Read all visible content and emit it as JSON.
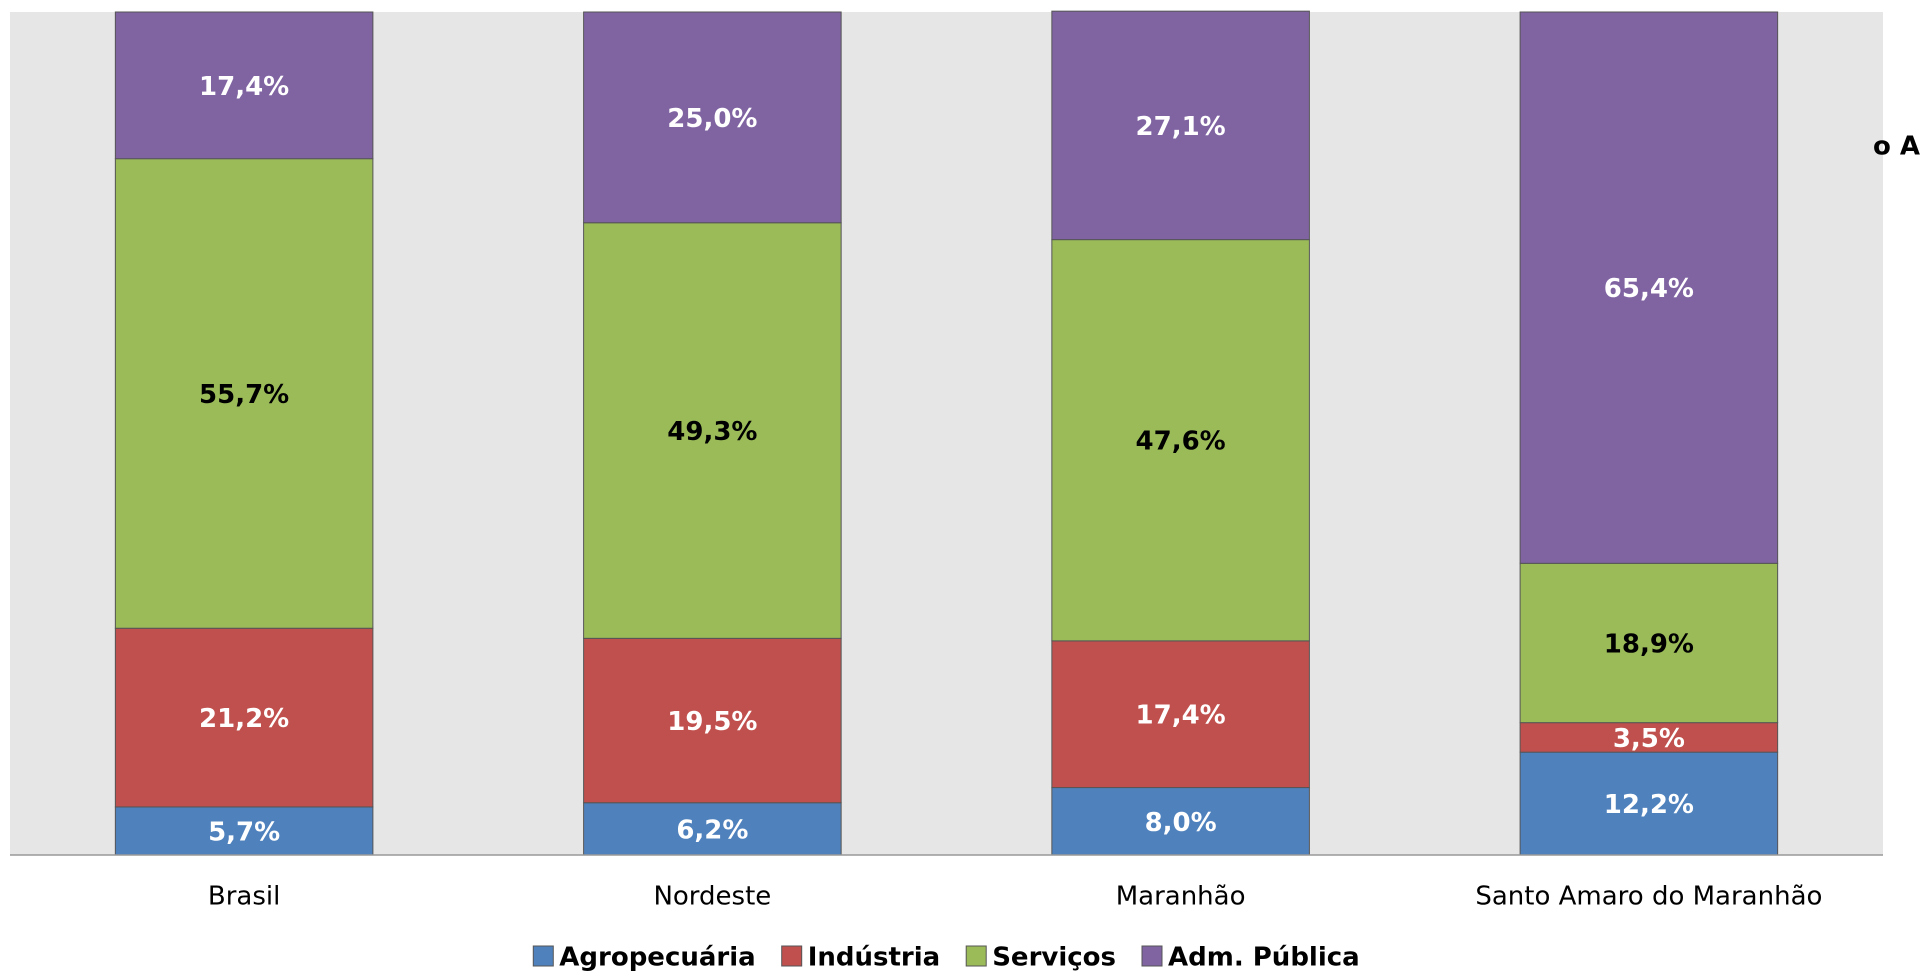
{
  "chart_data": {
    "type": "stacked_bar",
    "title": "o A",
    "categories": [
      "Brasil",
      "Nordeste",
      "Maranhão",
      "Santo Amaro do Maranhão"
    ],
    "series": [
      {
        "name": "Agropecuária",
        "color": "#4f81bd",
        "label_color": "#ffffff",
        "values": [
          5.7,
          6.2,
          8.0,
          12.2
        ],
        "value_labels": [
          "5,7%",
          "6,2%",
          "8,0%",
          "12,2%"
        ]
      },
      {
        "name": "Indústria",
        "color": "#c0504d",
        "label_color": "#ffffff",
        "values": [
          21.2,
          19.5,
          17.4,
          3.5
        ],
        "value_labels": [
          "21,2%",
          "19,5%",
          "17,4%",
          "3,5%"
        ]
      },
      {
        "name": "Serviços",
        "color": "#9bbb59",
        "label_color": "#000000",
        "values": [
          55.7,
          49.3,
          47.6,
          18.9
        ],
        "value_labels": [
          "55,7%",
          "49,3%",
          "47,6%",
          "18,9%"
        ]
      },
      {
        "name": "Adm. Pública",
        "color": "#8064a2",
        "label_color": "#ffffff",
        "values": [
          17.4,
          25.0,
          27.1,
          65.4
        ],
        "value_labels": [
          "17,4%",
          "25,0%",
          "27,1%",
          "65,4%"
        ]
      }
    ],
    "ylim": [
      0,
      100
    ],
    "legend": "bottom"
  }
}
